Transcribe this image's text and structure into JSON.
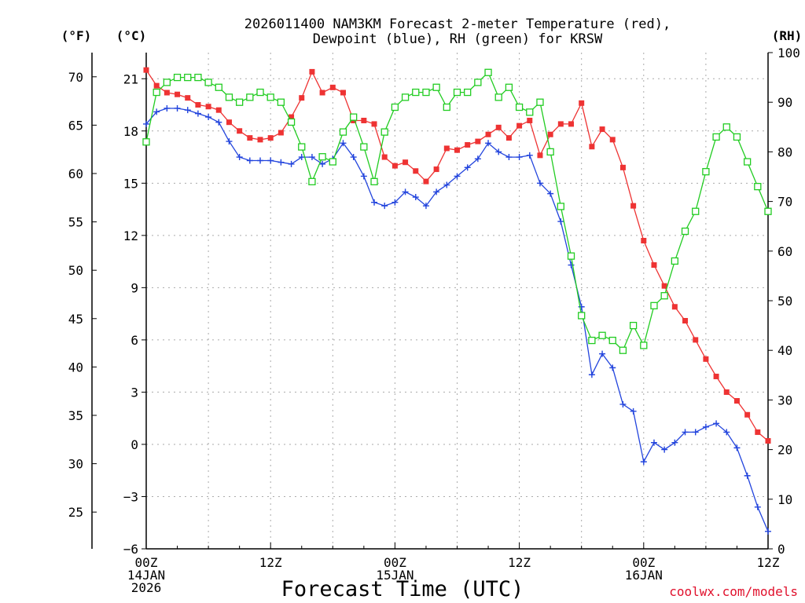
{
  "chart_data": {
    "type": "line",
    "title_line1": "2026011400 NAM3KM Forecast 2-meter Temperature (red),",
    "title_line2": "Dewpoint (blue), RH (green) for KRSW",
    "xlabel": "Forecast Time (UTC)",
    "credit": "coolwx.com/models",
    "colors": {
      "temperature": "#ee3333",
      "dewpoint": "#2244dd",
      "rh": "#22cc22",
      "grid": "#aaaaaa"
    },
    "x_range_hours": [
      0,
      60
    ],
    "x_ticks": [
      {
        "hour": 0,
        "line1": "00Z",
        "line2": "14JAN",
        "line3": "2026"
      },
      {
        "hour": 12,
        "line1": "12Z",
        "line2": "",
        "line3": ""
      },
      {
        "hour": 24,
        "line1": "00Z",
        "line2": "15JAN",
        "line3": ""
      },
      {
        "hour": 36,
        "line1": "12Z",
        "line2": "",
        "line3": ""
      },
      {
        "hour": 48,
        "line1": "00Z",
        "line2": "16JAN",
        "line3": ""
      },
      {
        "hour": 60,
        "line1": "12Z",
        "line2": "",
        "line3": ""
      }
    ],
    "left_axis_c": {
      "unit_label": "(°C)",
      "ylim": [
        -6,
        22.5
      ],
      "ticks": [
        -6,
        -3,
        0,
        3,
        6,
        9,
        12,
        15,
        18,
        21
      ]
    },
    "left_axis_f": {
      "unit_label": "(°F)",
      "ticks": [
        25,
        30,
        35,
        40,
        45,
        50,
        55,
        60,
        65,
        70
      ]
    },
    "right_axis_rh": {
      "unit_label": "(RH)",
      "ylim": [
        0,
        100
      ],
      "ticks": [
        0,
        10,
        20,
        30,
        40,
        50,
        60,
        70,
        80,
        90,
        100
      ]
    },
    "hours": [
      0,
      1,
      2,
      3,
      4,
      5,
      6,
      7,
      8,
      9,
      10,
      11,
      12,
      13,
      14,
      15,
      16,
      17,
      18,
      19,
      20,
      21,
      22,
      23,
      24,
      25,
      26,
      27,
      28,
      29,
      30,
      31,
      32,
      33,
      34,
      35,
      36,
      37,
      38,
      39,
      40,
      41,
      42,
      43,
      44,
      45,
      46,
      47,
      48,
      49,
      50,
      51,
      52,
      53,
      54,
      55,
      56,
      57,
      58,
      59,
      60
    ],
    "series": [
      {
        "name": "2-meter Temperature",
        "unit": "C",
        "color_key": "temperature",
        "values": [
          21.5,
          20.6,
          20.2,
          20.1,
          19.9,
          19.5,
          19.4,
          19.2,
          18.5,
          18.0,
          17.6,
          17.5,
          17.6,
          17.9,
          18.8,
          19.9,
          21.4,
          20.2,
          20.5,
          20.2,
          18.6,
          18.6,
          18.4,
          16.5,
          16.0,
          16.2,
          15.7,
          15.1,
          15.8,
          17.0,
          16.9,
          17.2,
          17.4,
          17.8,
          18.2,
          17.6,
          18.3,
          18.6,
          16.6,
          17.8,
          18.4,
          18.4,
          19.6,
          17.1,
          18.1,
          17.5,
          15.9,
          13.7,
          11.7,
          10.3,
          9.1,
          7.9,
          7.1,
          6.0,
          4.9,
          3.9,
          3.0,
          2.5,
          1.7,
          0.7,
          0.2
        ]
      },
      {
        "name": "Dewpoint",
        "unit": "C",
        "color_key": "dewpoint",
        "values": [
          18.4,
          19.1,
          19.3,
          19.3,
          19.2,
          19.0,
          18.8,
          18.5,
          17.4,
          16.5,
          16.3,
          16.3,
          16.3,
          16.2,
          16.1,
          16.5,
          16.5,
          16.1,
          16.4,
          17.3,
          16.5,
          15.4,
          13.9,
          13.7,
          13.9,
          14.5,
          14.2,
          13.7,
          14.5,
          14.9,
          15.4,
          15.9,
          16.4,
          17.3,
          16.8,
          16.5,
          16.5,
          16.6,
          15.0,
          14.4,
          12.8,
          10.3,
          7.9,
          4.0,
          5.2,
          4.4,
          2.3,
          1.9,
          -1.0,
          0.1,
          -0.3,
          0.1,
          0.7,
          0.7,
          1.0,
          1.2,
          0.7,
          -0.2,
          -1.8,
          -3.6,
          -5.0
        ]
      },
      {
        "name": "RH",
        "unit": "%",
        "color_key": "rh",
        "values": [
          82,
          92,
          94,
          95,
          95,
          95,
          94,
          93,
          91,
          90,
          91,
          92,
          91,
          90,
          86,
          81,
          74,
          79,
          78,
          84,
          87,
          81,
          74,
          84,
          89,
          91,
          92,
          92,
          93,
          89,
          92,
          92,
          94,
          96,
          91,
          93,
          89,
          88,
          90,
          80,
          69,
          59,
          47,
          42,
          43,
          42,
          40,
          45,
          41,
          49,
          51,
          58,
          64,
          68,
          76,
          83,
          85,
          83,
          78,
          73,
          68
        ]
      }
    ]
  }
}
